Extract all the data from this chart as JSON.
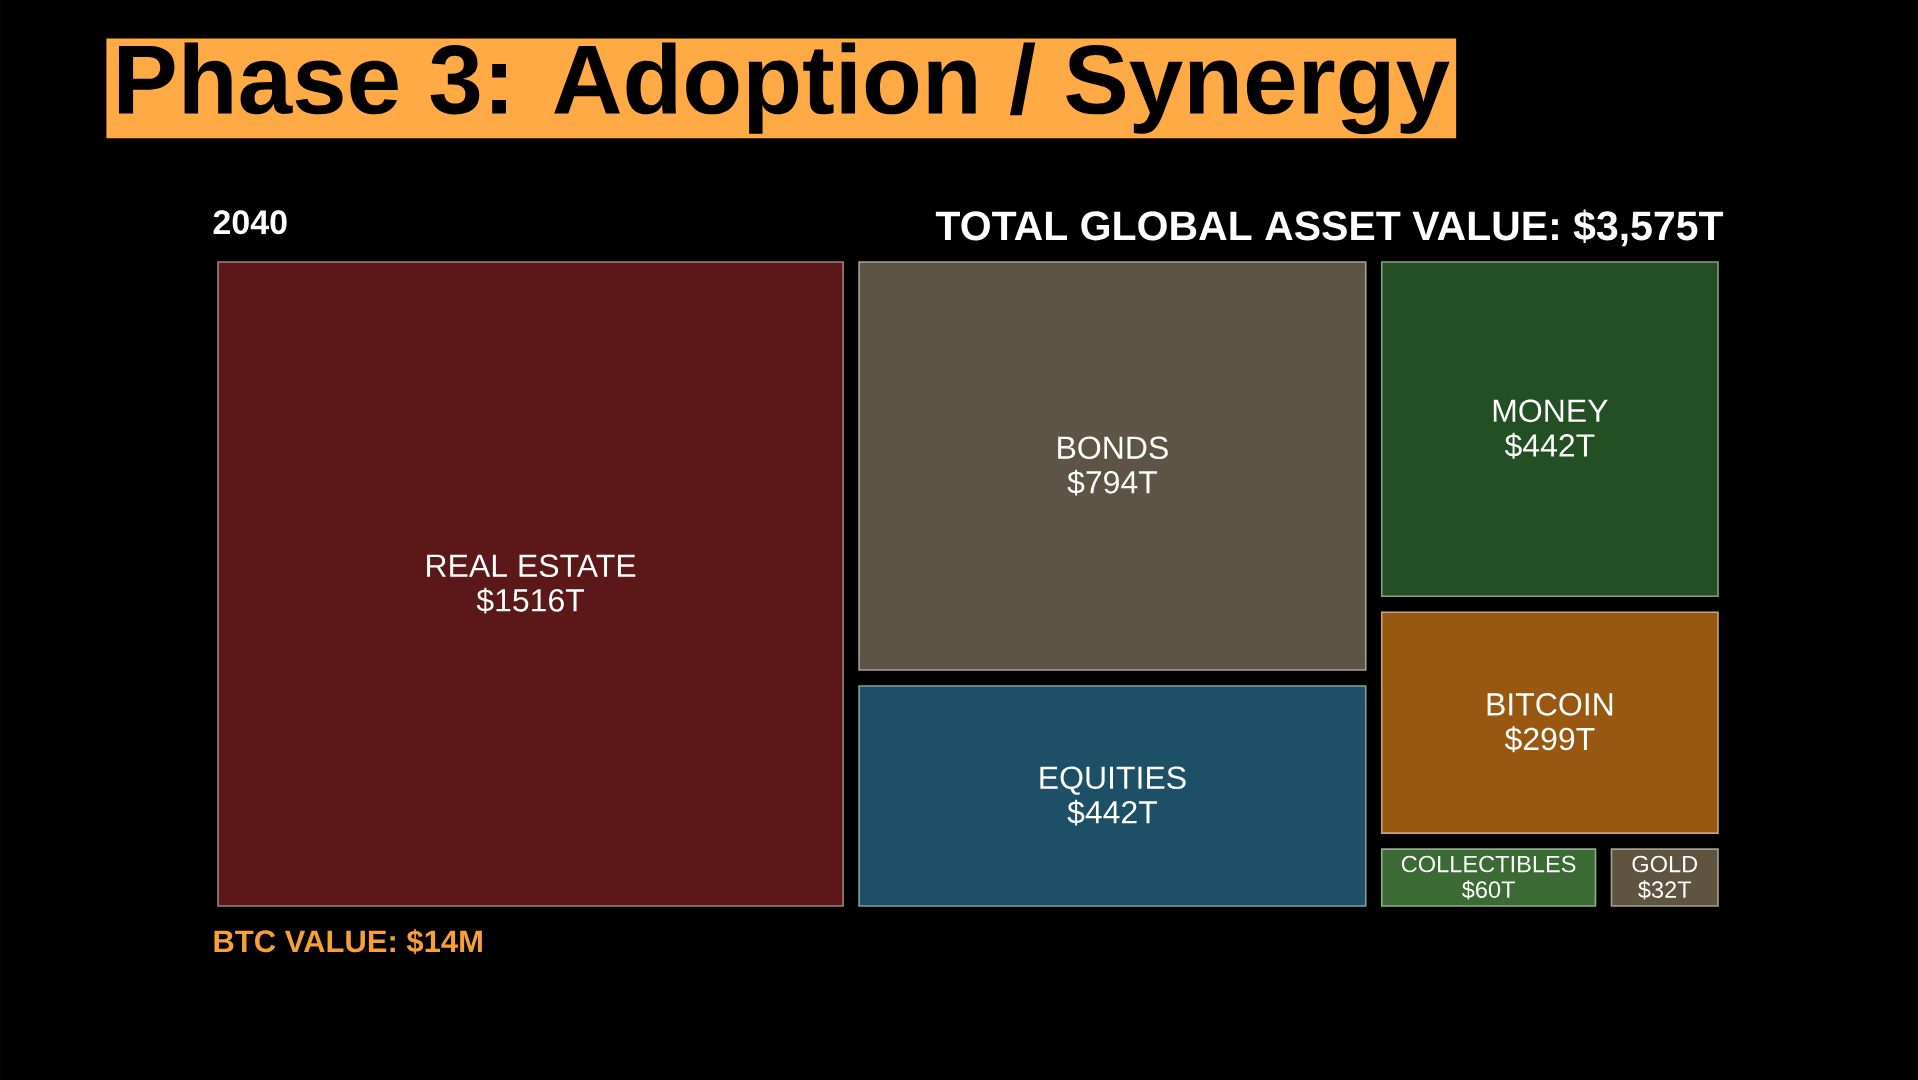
{
  "chart_data": {
    "type": "other",
    "title": "Phase 3: Adoption / Synergy",
    "subtitle": "2040",
    "categories": [
      "REAL ESTATE",
      "BONDS",
      "EQUITIES",
      "MONEY",
      "BITCOIN",
      "COLLECTIBLES",
      "GOLD"
    ],
    "values": [
      1516,
      794,
      442,
      442,
      299,
      60,
      32
    ],
    "value_labels": [
      "$1516T",
      "$794T",
      "$442T",
      "$442T",
      "$299T",
      "$60T",
      "$32T"
    ],
    "colors": [
      "#5c1818",
      "#5e5445",
      "#1d4f66",
      "#244e23",
      "#985812",
      "#3b6a34",
      "#5e5440"
    ],
    "annotations": [
      "TOTAL GLOBAL ASSET VALUE: $3,575T",
      "BTC VALUE: $14M"
    ]
  }
}
